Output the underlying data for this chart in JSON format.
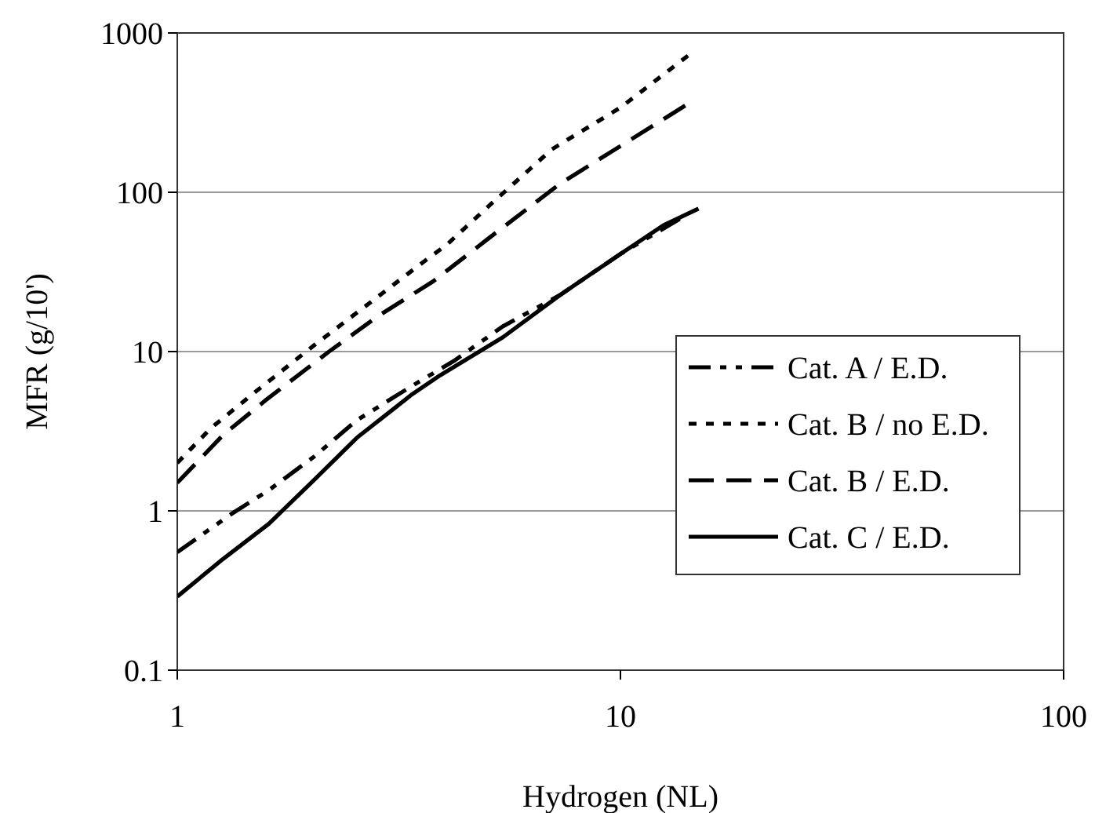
{
  "chart_data": {
    "type": "line",
    "xlabel": "Hydrogen (NL)",
    "ylabel": "MFR (g/10')",
    "log": "xy",
    "grid": "y",
    "legend": "right",
    "xlim": [
      1,
      100
    ],
    "xticks": [
      1,
      10,
      100
    ],
    "ylim": [
      0.1,
      1000
    ],
    "yticks": [
      0.1,
      1,
      10,
      100,
      1000
    ],
    "series": [
      {
        "name": "Cat. A / E.D.",
        "color": "#000000",
        "line_style": "dashdot",
        "x": [
          1,
          1.32,
          1.61,
          2.04,
          2.54,
          3.39,
          4.2,
          5.43,
          7.3,
          10,
          13.6
        ],
        "values": [
          0.55,
          0.95,
          1.35,
          2.2,
          3.7,
          6.1,
          8.7,
          14.4,
          22.6,
          41,
          68
        ]
      },
      {
        "name": "Cat. B / no E.D.",
        "color": "#000000",
        "line_style": "dotted",
        "x": [
          1,
          1.19,
          1.49,
          2.04,
          2.54,
          3.52,
          4.06,
          5.07,
          7,
          10,
          14.2
        ],
        "values": [
          2,
          3.3,
          5.5,
          11,
          17.5,
          35,
          47,
          83,
          186,
          340,
          720
        ]
      },
      {
        "name": "Cat. B / E.D.",
        "color": "#000000",
        "line_style": "dashed",
        "x": [
          1,
          1.27,
          1.59,
          2.2,
          2.83,
          3.78,
          5.07,
          7.3,
          10,
          14
        ],
        "values": [
          1.5,
          3,
          5,
          10,
          16.6,
          27.6,
          52,
          113,
          195,
          350
        ]
      },
      {
        "name": "Cat. C / E.D.",
        "color": "#000000",
        "line_style": "solid",
        "x": [
          1,
          1.27,
          1.61,
          2.04,
          2.54,
          3.39,
          3.92,
          5.43,
          7.3,
          10,
          12.5,
          15
        ],
        "values": [
          0.29,
          0.5,
          0.83,
          1.57,
          2.87,
          5.4,
          7.1,
          12.3,
          22.6,
          41,
          62,
          79
        ]
      }
    ]
  }
}
